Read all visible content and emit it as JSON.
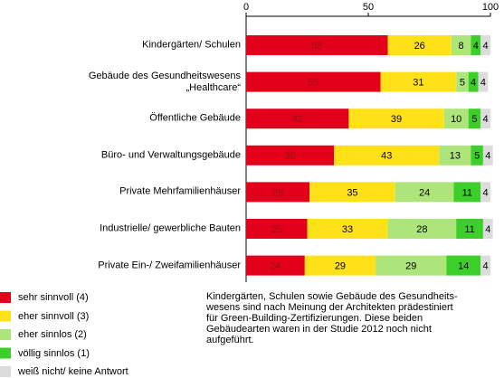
{
  "chart_data": {
    "type": "stacked-bar-horizontal",
    "categories": [
      "Kindergärten/ Schulen",
      "Gebäude des Gesundheitswesens\n„Healthcare“",
      "Öffentliche Gebäude",
      "Büro- und Verwaltungsgebäude",
      "Private Mehrfamilienhäuser",
      "Industrielle/ gewerbliche Bauten",
      "Private Ein-/ Zweifamilienhäuser"
    ],
    "series": [
      {
        "name": "sehr sinnvoll (4)",
        "color": "#e3001b",
        "values": [
          58,
          55,
          42,
          36,
          26,
          25,
          24
        ]
      },
      {
        "name": "eher sinnvoll (3)",
        "color": "#ffe11a",
        "values": [
          26,
          31,
          39,
          43,
          35,
          33,
          29
        ]
      },
      {
        "name": "eher sinnlos (2)",
        "color": "#aee57a",
        "values": [
          8,
          5,
          10,
          13,
          24,
          28,
          29
        ]
      },
      {
        "name": "völlig sinnlos (1)",
        "color": "#3ccf2a",
        "values": [
          4,
          4,
          5,
          5,
          11,
          11,
          14
        ]
      },
      {
        "name": "weiß nicht/ keine Antwort",
        "color": "#dcdcdc",
        "values": [
          4,
          4,
          4,
          4,
          4,
          4,
          4
        ]
      }
    ],
    "xlim": [
      0,
      100
    ],
    "xticks": [
      0,
      50,
      100
    ],
    "annotation": "Kindergärten, Schulen sowie Gebäude des Gesundheits-\nwesens sind nach Meinung der Architekten prädestiniert\nfür Green-Building-Zertifizierungen. Diese beiden\nGebäudearten waren in der Studie 2012 noch nicht\naufgeführt."
  }
}
